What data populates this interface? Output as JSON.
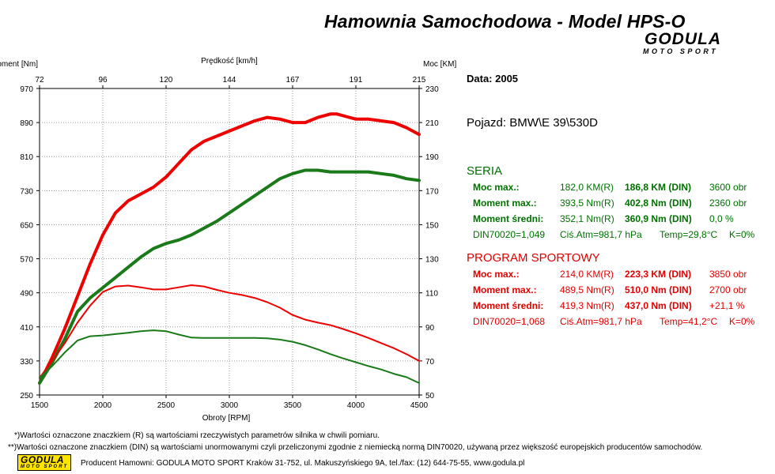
{
  "header": {
    "title": "Hamownia Samochodowa   -   Model HPS-O",
    "logo_brand": "GODULA",
    "logo_sub": "MOTO SPORT"
  },
  "info": {
    "date": "Data: 2005",
    "vehicle": "Pojazd: BMW\\E 39\\530D"
  },
  "seria": {
    "heading": "SERIA",
    "color": "#007000",
    "rows": [
      {
        "label": "Moc max.:",
        "real": "182,0 KM(R)",
        "din": "186,8 KM (DIN)",
        "extra": "3600 obr"
      },
      {
        "label": "Moment max.:",
        "real": "393,5 Nm(R)",
        "din": "402,8 Nm (DIN)",
        "extra": "2360 obr"
      },
      {
        "label": "Moment średni:",
        "real": "352,1 Nm(R)",
        "din": "360,9 Nm (DIN)",
        "extra": "0,0 %"
      }
    ],
    "din_line": {
      "din": "DIN70020=1,049",
      "atm": "Ciś.Atm=981,7 hPa",
      "temp": "Temp=29,8°C",
      "k": "K=0%"
    }
  },
  "program": {
    "heading": "PROGRAM SPORTOWY",
    "color": "#e00000",
    "rows": [
      {
        "label": "Moc max.:",
        "real": "214,0 KM(R)",
        "din": "223,3 KM (DIN)",
        "extra": "3850 obr"
      },
      {
        "label": "Moment max.:",
        "real": "489,5 Nm(R)",
        "din": "510,0 Nm (DIN)",
        "extra": "2700 obr"
      },
      {
        "label": "Moment średni:",
        "real": "419,3 Nm(R)",
        "din": "437,0 Nm (DIN)",
        "extra": "+21,1 %"
      }
    ],
    "din_line": {
      "din": "DIN70020=1,068",
      "atm": "Ciś.Atm=981,7 hPa",
      "temp": "Temp=41,2°C",
      "k": "K=0%"
    }
  },
  "footer": {
    "note1": "*)Wartości oznaczone znaczkiem (R) są wartościami rzeczywistych parametrów silnika w chwili pomiaru.",
    "note2": "**)Wartości oznaczone znaczkiem (DIN) są wartościami unormowanymi czyli przeliczonymi zgodnie z niemiecką normą DIN70020, używaną przez większość europejskich producentów samochodów.",
    "producer": "Producent Hamowni: GODULA MOTO SPORT Kraków 31-752, ul. Makuszyńskiego 9A, tel./fax: (12) 644-75-55, www.godula.pl"
  },
  "chart_data": {
    "type": "line",
    "xlabel": "Obroty [RPM]",
    "ylabel_left": "Moment [Nm]",
    "ylabel_right": "Moc [KM]",
    "top_axis_label": "Prędkość [km/h]",
    "x_ticks": [
      1500,
      2000,
      2500,
      3000,
      3500,
      4000,
      4500
    ],
    "top_ticks": [
      "72",
      "96",
      "120",
      "144",
      "167",
      "191",
      "215"
    ],
    "y_left_ticks": [
      250,
      330,
      410,
      490,
      570,
      650,
      730,
      810,
      890,
      970
    ],
    "y_right_ticks": [
      50,
      70,
      90,
      110,
      130,
      150,
      170,
      190,
      210,
      230
    ],
    "xlim": [
      1500,
      4500
    ],
    "ylim_left": [
      250,
      970
    ],
    "ylim_right": [
      50,
      230
    ],
    "grid": true,
    "series": [
      {
        "color": "#ee0000",
        "width": 4,
        "axis": "right",
        "x": [
          1500,
          1600,
          1700,
          1800,
          1900,
          2000,
          2100,
          2200,
          2300,
          2400,
          2500,
          2600,
          2700,
          2800,
          2900,
          3000,
          3100,
          3200,
          3300,
          3400,
          3500,
          3600,
          3700,
          3800,
          3850,
          3900,
          4000,
          4100,
          4200,
          4300,
          4400,
          4500
        ],
        "y": [
          57,
          72,
          89,
          108,
          127,
          144,
          157,
          164,
          168,
          172,
          178,
          186,
          194,
          199,
          202,
          205,
          208,
          211,
          213,
          212,
          210,
          210,
          213,
          215,
          215,
          214,
          212,
          212,
          211,
          210,
          207,
          203
        ]
      },
      {
        "color": "#1a7a1a",
        "width": 4,
        "axis": "right",
        "x": [
          1500,
          1600,
          1700,
          1800,
          1900,
          2000,
          2100,
          2200,
          2300,
          2400,
          2500,
          2600,
          2700,
          2800,
          2900,
          3000,
          3100,
          3200,
          3300,
          3400,
          3500,
          3600,
          3700,
          3800,
          3900,
          4000,
          4100,
          4200,
          4300,
          4400,
          4500
        ],
        "y": [
          57,
          69,
          83,
          99,
          107,
          113,
          119,
          125,
          131,
          136,
          139,
          141,
          144,
          148,
          152,
          157,
          162,
          167,
          172,
          177,
          180,
          182,
          182,
          181,
          181,
          181,
          181,
          180,
          179,
          177,
          176
        ]
      },
      {
        "color": "#ee0000",
        "width": 2,
        "axis": "left",
        "x": [
          1500,
          1600,
          1700,
          1800,
          1900,
          2000,
          2100,
          2200,
          2300,
          2400,
          2500,
          2600,
          2700,
          2800,
          2900,
          3000,
          3100,
          3200,
          3300,
          3400,
          3500,
          3600,
          3700,
          3800,
          3900,
          4000,
          4100,
          4200,
          4300,
          4400,
          4500
        ],
        "y": [
          290,
          330,
          372,
          420,
          460,
          492,
          505,
          507,
          503,
          498,
          498,
          503,
          508,
          505,
          497,
          490,
          485,
          478,
          468,
          455,
          438,
          427,
          420,
          414,
          405,
          395,
          384,
          372,
          360,
          346,
          330
        ]
      },
      {
        "color": "#1a7a1a",
        "width": 2,
        "axis": "left",
        "x": [
          1500,
          1600,
          1700,
          1800,
          1900,
          2000,
          2100,
          2200,
          2300,
          2400,
          2500,
          2600,
          2700,
          2800,
          2900,
          3000,
          3100,
          3200,
          3300,
          3400,
          3500,
          3600,
          3700,
          3800,
          3900,
          4000,
          4100,
          4200,
          4300,
          4400,
          4500
        ],
        "y": [
          290,
          318,
          350,
          378,
          388,
          390,
          393,
          396,
          400,
          402,
          400,
          392,
          385,
          384,
          384,
          384,
          384,
          384,
          383,
          380,
          375,
          367,
          357,
          346,
          336,
          327,
          318,
          310,
          300,
          292,
          278
        ]
      }
    ]
  }
}
